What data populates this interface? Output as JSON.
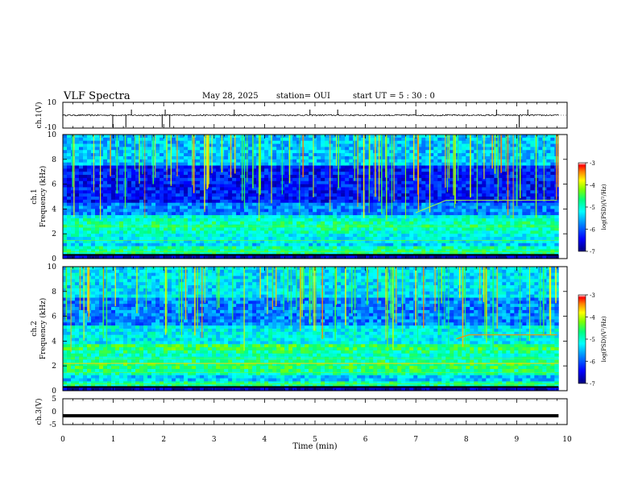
{
  "header": {
    "title": "VLF Spectra",
    "date": "May 28, 2025",
    "station": "station= OUI",
    "start": "start  UT =   5 : 30 : 0"
  },
  "chart_data": [
    {
      "type": "line",
      "name": "ch.1 waveform",
      "ylabel": "ch.1(V)",
      "ylim": [
        -10,
        10
      ],
      "yticks": [
        "10",
        "-10"
      ],
      "xlim": [
        0,
        10
      ],
      "x_extent": [
        0,
        9.83
      ],
      "baseline": 0,
      "description_level": "noise about 0 V with occasional spikes"
    },
    {
      "type": "heatmap",
      "name": "ch.1 spectrogram",
      "ylabel_top": "ch.1",
      "ylabel": "Frequency (kHz)",
      "ylim": [
        0,
        10
      ],
      "yticks": [
        0,
        2,
        4,
        6,
        8,
        10
      ],
      "xlim": [
        0,
        10
      ],
      "x_extent": [
        0,
        9.83
      ],
      "colorbar": {
        "label": "log(PSD)(V²/Hz)",
        "range": [
          -7,
          -3
        ],
        "ticks": [
          "-3",
          "-4",
          "-5",
          "-6",
          "-7"
        ]
      }
    },
    {
      "type": "heatmap",
      "name": "ch.2 spectrogram",
      "ylabel_top": "ch.2",
      "ylabel": "Frequency (kHz)",
      "ylim": [
        0,
        10
      ],
      "yticks": [
        0,
        2,
        4,
        6,
        8,
        10
      ],
      "xlim": [
        0,
        10
      ],
      "x_extent": [
        0,
        9.83
      ],
      "colorbar": {
        "label": "log(PSD)(V²/Hz)",
        "range": [
          -7,
          -3
        ],
        "ticks": [
          "-3",
          "-4",
          "-5",
          "-6",
          "-7"
        ]
      }
    },
    {
      "type": "line",
      "name": "ch.3 signal",
      "ylabel": "ch.3(V)",
      "ylim": [
        -5,
        5
      ],
      "yticks": [
        "5",
        "0",
        "-5"
      ],
      "xlim": [
        0,
        10
      ],
      "x_extent": [
        0,
        9.83
      ],
      "value": -1.6
    }
  ],
  "xaxis": {
    "label": "Time (min)",
    "ticks": [
      "0",
      "1",
      "2",
      "3",
      "4",
      "5",
      "6",
      "7",
      "8",
      "9",
      "10"
    ]
  },
  "colors": {
    "frame": "#000000",
    "colormap": [
      "#00007a",
      "#0000ff",
      "#0080ff",
      "#00ffff",
      "#00ff80",
      "#80ff00",
      "#ffff00",
      "#ff8000",
      "#ff0000",
      "#ffffff"
    ]
  }
}
